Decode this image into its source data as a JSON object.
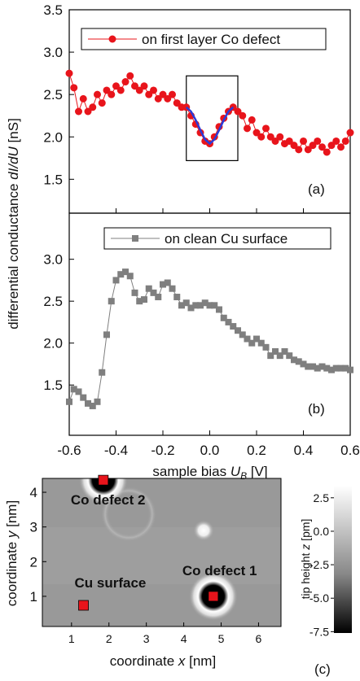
{
  "chart_data": [
    {
      "type": "line",
      "panel_label": "(a)",
      "y_label": [
        "differential conductance ",
        "dI/dU",
        " [nS]"
      ],
      "xlim": [
        -0.6,
        0.6
      ],
      "xticks": [
        -0.6,
        -0.4,
        -0.2,
        0,
        0.2,
        0.4,
        0.6
      ],
      "ylim": [
        1.1,
        3.5
      ],
      "yticks": [
        1.5,
        {
          "value": 2,
          "label": "2.0"
        },
        2.5,
        {
          "value": 3,
          "label": "3.0"
        },
        3.5
      ],
      "box": {
        "x": [
          -0.1,
          0.12
        ],
        "y": [
          1.72,
          2.72
        ]
      },
      "series": [
        {
          "name": "on first layer Co defect",
          "color": "#e8141b",
          "marker": "circle",
          "x": [
            -0.6,
            -0.58,
            -0.56,
            -0.54,
            -0.52,
            -0.5,
            -0.48,
            -0.46,
            -0.44,
            -0.42,
            -0.4,
            -0.38,
            -0.36,
            -0.34,
            -0.32,
            -0.3,
            -0.28,
            -0.26,
            -0.24,
            -0.22,
            -0.2,
            -0.18,
            -0.16,
            -0.14,
            -0.12,
            -0.1,
            -0.08,
            -0.06,
            -0.04,
            -0.02,
            0,
            0.02,
            0.04,
            0.06,
            0.08,
            0.1,
            0.12,
            0.14,
            0.16,
            0.18,
            0.2,
            0.22,
            0.24,
            0.26,
            0.28,
            0.3,
            0.32,
            0.34,
            0.36,
            0.38,
            0.4,
            0.42,
            0.44,
            0.46,
            0.48,
            0.5,
            0.52,
            0.54,
            0.56,
            0.58,
            0.6
          ],
          "values": [
            2.75,
            2.58,
            2.3,
            2.45,
            2.3,
            2.35,
            2.5,
            2.4,
            2.55,
            2.5,
            2.6,
            2.55,
            2.65,
            2.72,
            2.6,
            2.55,
            2.6,
            2.5,
            2.55,
            2.45,
            2.5,
            2.45,
            2.5,
            2.4,
            2.35,
            2.35,
            2.25,
            2.15,
            2.05,
            1.95,
            1.92,
            2.0,
            2.12,
            2.22,
            2.3,
            2.35,
            2.3,
            2.25,
            2.1,
            2.2,
            2.05,
            2.0,
            2.1,
            2.0,
            1.95,
            2.0,
            1.92,
            1.95,
            1.9,
            1.85,
            1.95,
            1.85,
            1.9,
            1.95,
            1.88,
            1.82,
            1.9,
            1.95,
            1.88,
            1.95,
            2.05
          ]
        },
        {
          "color": "#2a3bd8",
          "x": [
            -0.1,
            -0.08,
            -0.06,
            -0.04,
            -0.02,
            0,
            0.02,
            0.04,
            0.06,
            0.08,
            0.1
          ],
          "values": [
            2.35,
            2.3,
            2.2,
            2.08,
            1.97,
            1.92,
            1.97,
            2.08,
            2.2,
            2.3,
            2.35
          ]
        }
      ]
    },
    {
      "type": "line",
      "panel_label": "(b)",
      "x_label": [
        "sample bias ",
        "U",
        "B",
        " [V]"
      ],
      "xlim": [
        -0.6,
        0.6
      ],
      "xticks": [
        -0.6,
        -0.4,
        -0.2,
        {
          "value": 0,
          "label": "0.0"
        },
        0.2,
        0.4,
        0.6
      ],
      "ylim": [
        0.9,
        3.55
      ],
      "yticks": [
        1.5,
        {
          "value": 2,
          "label": "2.0"
        },
        2.5,
        {
          "value": 3,
          "label": "3.0"
        }
      ],
      "series": [
        {
          "name": "on clean Cu surface",
          "color": "#7f7f7f",
          "marker": "square",
          "x": [
            -0.6,
            -0.58,
            -0.56,
            -0.54,
            -0.52,
            -0.5,
            -0.48,
            -0.46,
            -0.44,
            -0.42,
            -0.4,
            -0.38,
            -0.36,
            -0.34,
            -0.32,
            -0.3,
            -0.28,
            -0.26,
            -0.24,
            -0.22,
            -0.2,
            -0.18,
            -0.16,
            -0.14,
            -0.12,
            -0.1,
            -0.08,
            -0.06,
            -0.04,
            -0.02,
            0,
            0.02,
            0.04,
            0.06,
            0.08,
            0.1,
            0.12,
            0.14,
            0.16,
            0.18,
            0.2,
            0.22,
            0.24,
            0.26,
            0.28,
            0.3,
            0.32,
            0.34,
            0.36,
            0.38,
            0.4,
            0.42,
            0.44,
            0.46,
            0.48,
            0.5,
            0.52,
            0.54,
            0.56,
            0.58,
            0.6
          ],
          "values": [
            1.3,
            1.45,
            1.42,
            1.35,
            1.28,
            1.25,
            1.3,
            1.65,
            2.1,
            2.5,
            2.75,
            2.82,
            2.85,
            2.8,
            2.6,
            2.5,
            2.52,
            2.65,
            2.6,
            2.55,
            2.7,
            2.72,
            2.65,
            2.55,
            2.45,
            2.48,
            2.42,
            2.45,
            2.45,
            2.48,
            2.45,
            2.45,
            2.4,
            2.3,
            2.25,
            2.2,
            2.15,
            2.1,
            2.05,
            2.0,
            2.05,
            2.0,
            1.95,
            1.85,
            1.9,
            1.85,
            1.9,
            1.85,
            1.8,
            1.78,
            1.75,
            1.72,
            1.72,
            1.7,
            1.72,
            1.7,
            1.68,
            1.7,
            1.7,
            1.7,
            1.68
          ]
        }
      ]
    },
    {
      "type": "image",
      "panel_label": "(c)",
      "x_label": [
        "coordinate ",
        "x",
        " [nm]"
      ],
      "y_label": [
        "coordinate ",
        "y",
        " [nm]"
      ],
      "xlim": [
        0.22,
        6.6
      ],
      "xticks": [
        1,
        2,
        3,
        4,
        5,
        6
      ],
      "ylim": [
        0.13,
        4.4
      ],
      "yticks": [
        1,
        2,
        3,
        4
      ],
      "points": [
        {
          "label": "Co defect 2",
          "x": 1.85,
          "y": 4.35,
          "color": "#e8141b"
        },
        {
          "label": "Co defect 1",
          "x": 4.79,
          "y": 1.0,
          "color": "#e8141b"
        },
        {
          "label": "Cu surface",
          "x": 1.32,
          "y": 0.74,
          "color": "#e8141b"
        }
      ],
      "colorbar_label": [
        "tip height ",
        "z",
        " [pm]"
      ],
      "clim": [
        -7.6,
        3.4
      ],
      "cticks": [
        2.5,
        {
          "value": 0,
          "label": "0.0"
        },
        -2.5,
        {
          "value": -5,
          "label": "-5.0"
        },
        -7.5
      ]
    }
  ]
}
